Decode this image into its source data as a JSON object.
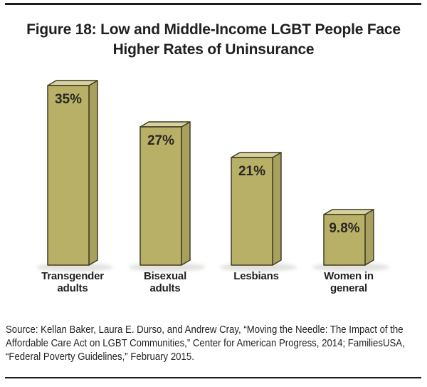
{
  "figure": {
    "title_line1": "Figure 18: Low and Middle-Income LGBT People Face",
    "title_line2": "Higher Rates of Uninsurance"
  },
  "chart_data": {
    "type": "bar",
    "title": "Figure 18: Low and Middle-Income LGBT People Face Higher Rates of Uninsurance",
    "categories": [
      "Transgender adults",
      "Bisexual adults",
      "Lesbians",
      "Women in general"
    ],
    "category_label_lines": [
      [
        "Transgender",
        "adults"
      ],
      [
        "Bisexual",
        "adults"
      ],
      [
        "Lesbians"
      ],
      [
        "Women in",
        "general"
      ]
    ],
    "values": [
      35,
      27,
      21,
      9.8
    ],
    "value_labels": [
      "35%",
      "27%",
      "21%",
      "9.8%"
    ],
    "unit": "percent",
    "xlabel": "",
    "ylabel": "",
    "ylim": [
      0,
      40
    ],
    "grid": false,
    "legend": null,
    "bar_style": "3d",
    "colors": {
      "bar_front": "#b8b067",
      "bar_top": "#d8d2a0",
      "bar_side": "#a8a05e",
      "bar_outline": "#403d22",
      "value_label": "#2a2622",
      "category_label": "#231f20",
      "shadow": "#cfcfca"
    }
  },
  "source": {
    "lines": [
      "Source: Kellan Baker, Laura E. Durso, and Andrew Cray, “Moving the Needle: The Impact of the",
      "Affordable Care Act on LGBT Communities,” Center for American Progress, 2014; FamiliesUSA,",
      "“Federal Poverty Guidelines,” February 2015."
    ]
  }
}
